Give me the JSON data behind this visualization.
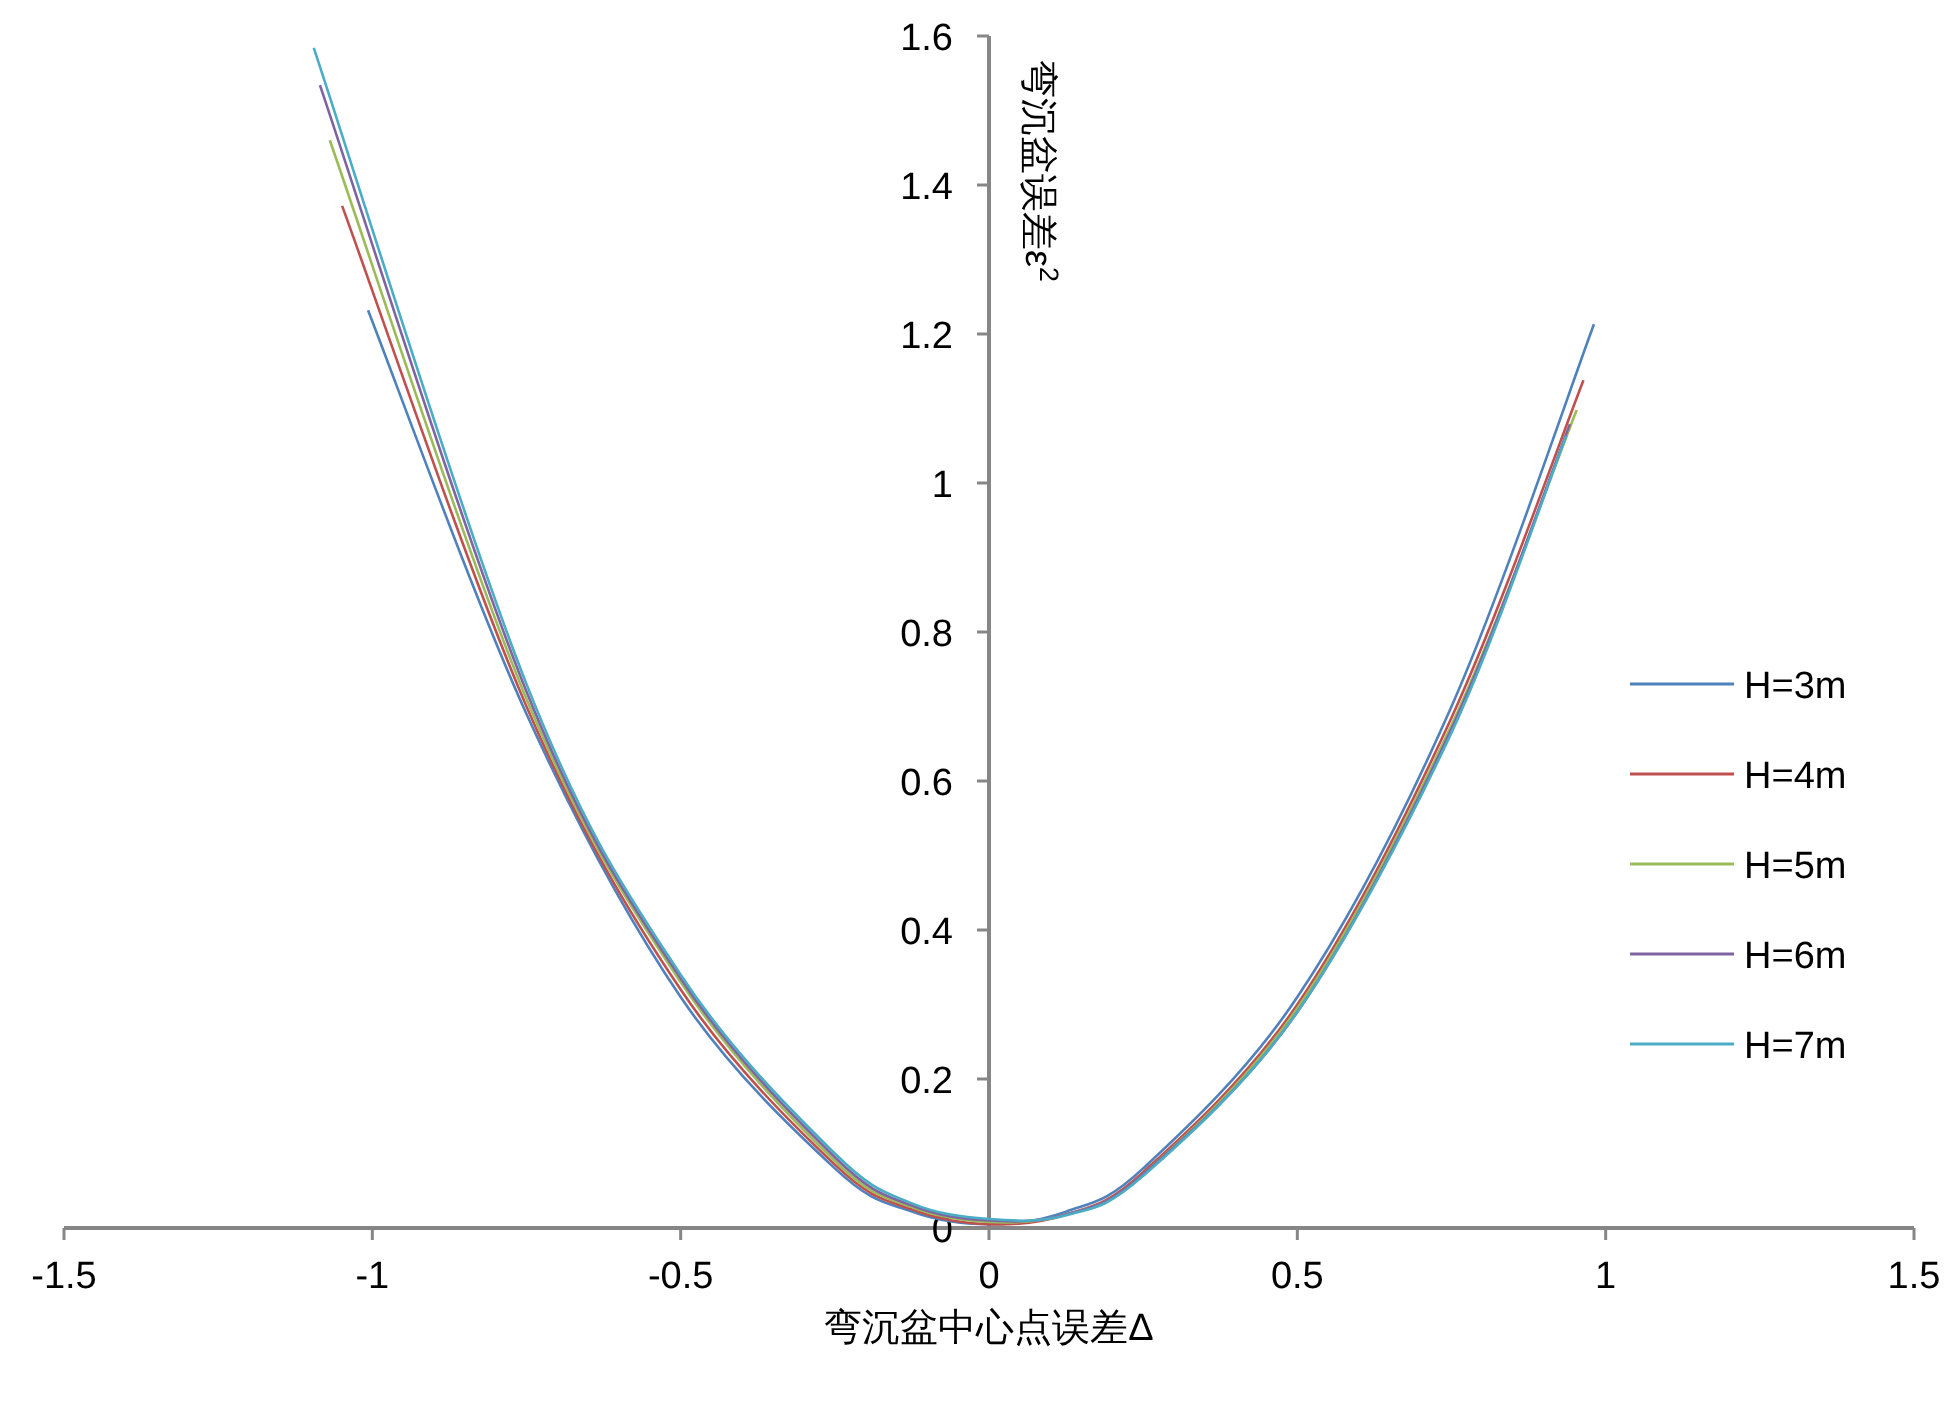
{
  "chart_data": {
    "type": "line",
    "xlabel": "弯沉盆中心点误差Δ",
    "ylabel": "弯沉盆误差ε$^{2}$",
    "xlim": [
      -1.5,
      1.5
    ],
    "xticks": [
      -1.5,
      -1,
      -0.5,
      0,
      0.5,
      1,
      1.5
    ],
    "ylim": [
      0,
      1.6
    ],
    "yticks": [
      0,
      0.2,
      0.4,
      0.6,
      0.8,
      1,
      1.2,
      1.4,
      1.6
    ],
    "grid": false,
    "legend": "right",
    "marker": "none",
    "line_style": "solid",
    "series": [
      {
        "name": "H=3m",
        "color": "#4f81bd",
        "x": [
          -1.007,
          -0.75,
          -0.5,
          -0.25,
          -0.125,
          0,
          0.125,
          0.25,
          0.5,
          0.75,
          0.981
        ],
        "values": [
          1.232,
          0.69,
          0.31,
          0.08,
          0.022,
          0.005,
          0.022,
          0.08,
          0.31,
          0.7,
          1.213
        ]
      },
      {
        "name": "H=4m",
        "color": "#c0504d",
        "x": [
          -1.049,
          -0.75,
          -0.5,
          -0.25,
          -0.125,
          0,
          0.125,
          0.25,
          0.5,
          0.75,
          0.964
        ],
        "values": [
          1.372,
          0.7,
          0.32,
          0.085,
          0.025,
          0.005,
          0.018,
          0.075,
          0.3,
          0.685,
          1.138
        ]
      },
      {
        "name": "H=5m",
        "color": "#9bbb59",
        "x": [
          -1.069,
          -0.75,
          -0.5,
          -0.25,
          -0.125,
          0,
          0.125,
          0.25,
          0.5,
          0.75,
          0.953
        ],
        "values": [
          1.46,
          0.71,
          0.33,
          0.09,
          0.028,
          0.008,
          0.018,
          0.072,
          0.295,
          0.675,
          1.098
        ]
      },
      {
        "name": "H=6m",
        "color": "#8064a2",
        "x": [
          -1.085,
          -0.75,
          -0.5,
          -0.25,
          -0.125,
          0,
          0.125,
          0.25,
          0.5,
          0.75,
          0.942
        ],
        "values": [
          1.534,
          0.72,
          0.335,
          0.095,
          0.03,
          0.01,
          0.018,
          0.072,
          0.29,
          0.67,
          1.079
        ]
      },
      {
        "name": "H=7m",
        "color": "#4bacc6",
        "x": [
          -1.095,
          -0.75,
          -0.5,
          -0.25,
          -0.125,
          0,
          0.125,
          0.25,
          0.5,
          0.75,
          0.936
        ],
        "values": [
          1.584,
          0.73,
          0.34,
          0.1,
          0.033,
          0.012,
          0.017,
          0.07,
          0.29,
          0.665,
          1.063
        ]
      }
    ]
  }
}
